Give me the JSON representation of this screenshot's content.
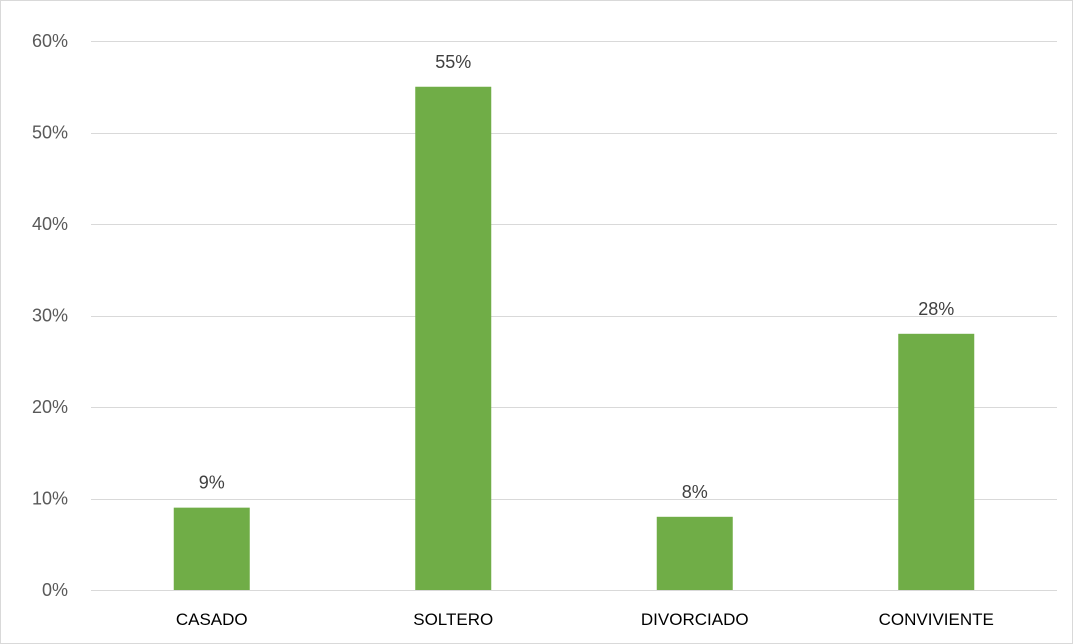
{
  "chart_data": {
    "type": "bar",
    "categories": [
      "CASADO",
      "SOLTERO",
      "DIVORCIADO",
      "CONVIVIENTE"
    ],
    "values": [
      9,
      55,
      8,
      28
    ],
    "data_labels": [
      "9%",
      "55%",
      "8%",
      "28%"
    ],
    "title": "",
    "xlabel": "",
    "ylabel": "",
    "ylim": [
      0,
      60
    ],
    "y_ticks": [
      0,
      10,
      20,
      30,
      40,
      50,
      60
    ],
    "y_tick_labels": [
      "0%",
      "10%",
      "20%",
      "30%",
      "40%",
      "50%",
      "60%"
    ],
    "grid": true,
    "legend": "none",
    "bar_color": "#70AD47",
    "gridline_color": "#D9D9D9",
    "frame_color": "#D9D9D9"
  }
}
